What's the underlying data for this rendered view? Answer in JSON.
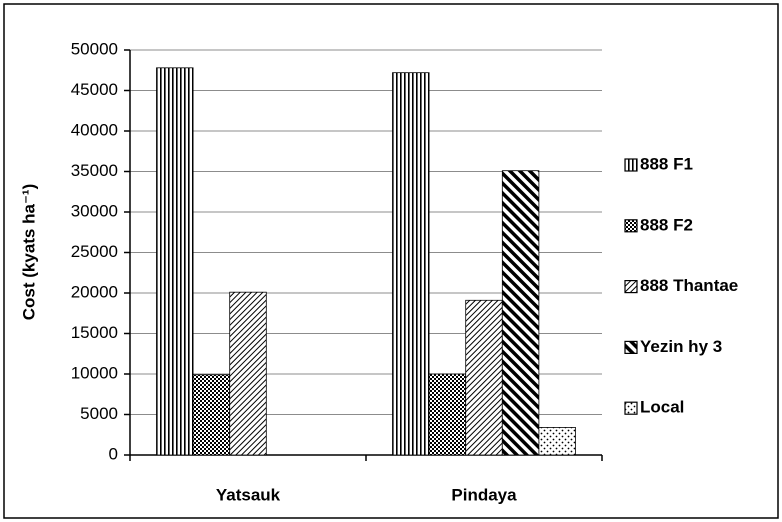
{
  "chart_data": {
    "type": "bar",
    "y_label": "Cost (kyats ha⁻¹)",
    "categories": [
      "Yatsauk",
      "Pindaya"
    ],
    "series": [
      {
        "name": "888 F1",
        "color": "#000000",
        "values": [
          47800,
          47200
        ]
      },
      {
        "name": "888 F2",
        "color": "#000000",
        "values": [
          9900,
          10000
        ]
      },
      {
        "name": "888 Thantae",
        "color": "#000000",
        "values": [
          20100,
          19100
        ]
      },
      {
        "name": "Yezin hy 3",
        "color": "#000000",
        "values": [
          null,
          35100
        ]
      },
      {
        "name": "Local",
        "color": "#000000",
        "values": [
          null,
          3400
        ]
      }
    ],
    "ylim": [
      0,
      50000
    ],
    "yticks": [
      0,
      5000,
      10000,
      15000,
      20000,
      25000,
      30000,
      35000,
      40000,
      45000,
      50000
    ],
    "grid": true,
    "legend": "right"
  }
}
